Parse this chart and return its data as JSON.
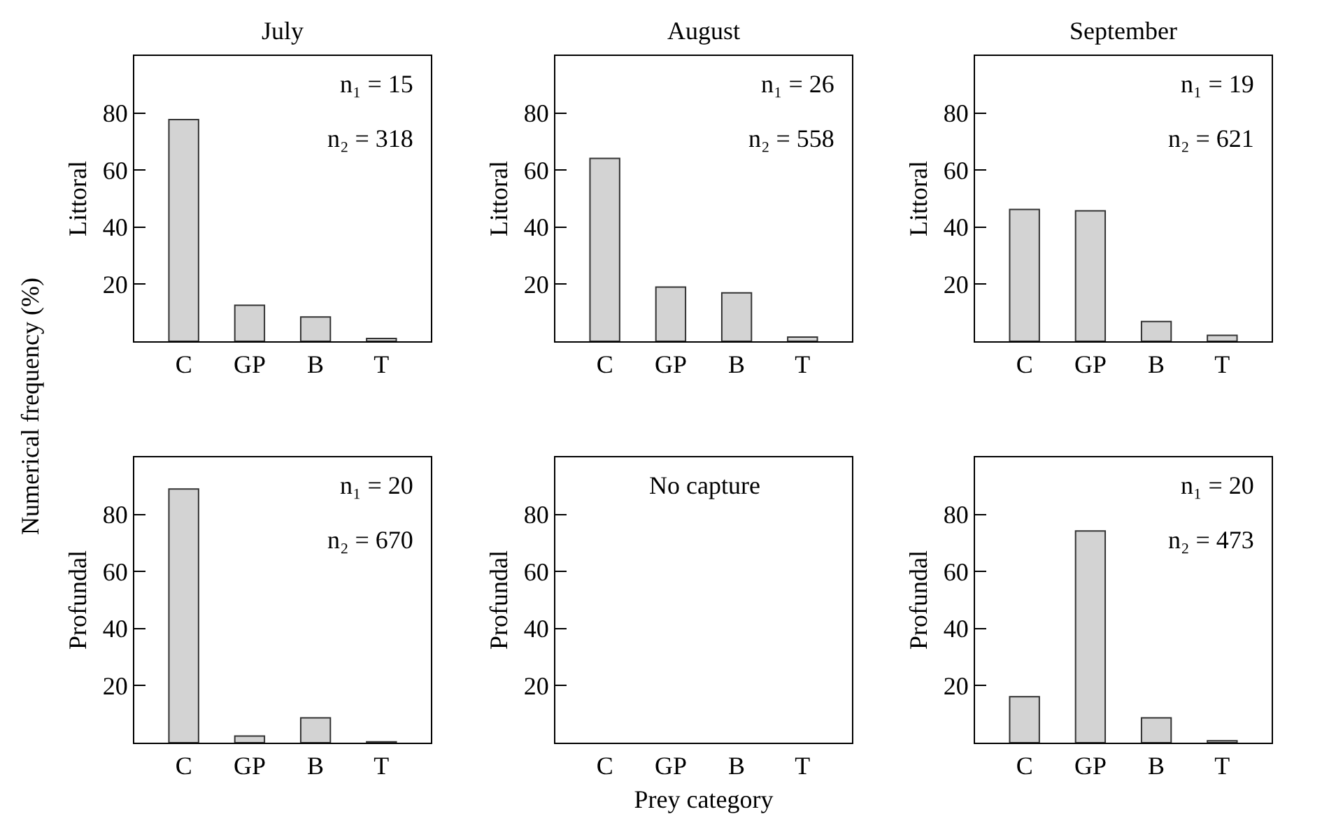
{
  "chart_data": [
    {
      "type": "bar",
      "title": "July",
      "ylabel": "Littoral",
      "categories": [
        "C",
        "GP",
        "B",
        "T"
      ],
      "values": [
        77.7,
        12.6,
        8.5,
        1.0
      ],
      "color": "#d3d3d3",
      "ylim": [
        0,
        100
      ],
      "yticks": [
        20,
        40,
        60,
        80
      ],
      "annotations": [
        "n₁ = 15",
        "n₂ = 318",
        "Numerical frequency (%)"
      ]
    },
    {
      "type": "bar",
      "title": "August",
      "ylabel": "Littoral",
      "categories": [
        "C",
        "GP",
        "B",
        "T"
      ],
      "values": [
        64.1,
        19.0,
        17.0,
        1.5
      ],
      "color": "#d3d3d3",
      "ylim": [
        0,
        100
      ],
      "yticks": [
        20,
        40,
        60,
        80
      ],
      "annotations": [
        "n₁ = 26",
        "n₂ = 558"
      ]
    },
    {
      "type": "bar",
      "title": "September",
      "ylabel": "Littoral",
      "categories": [
        "C",
        "GP",
        "B",
        "T"
      ],
      "values": [
        46.2,
        45.7,
        6.9,
        2.1
      ],
      "color": "#d3d3d3",
      "ylim": [
        0,
        100
      ],
      "yticks": [
        20,
        40,
        60,
        80
      ],
      "annotations": [
        "n₁ = 19",
        "n₂ = 621"
      ]
    },
    {
      "type": "bar",
      "ylabel": "Profundal",
      "categories": [
        "C",
        "GP",
        "B",
        "T"
      ],
      "values": [
        88.9,
        2.3,
        8.7,
        0.3
      ],
      "color": "#d3d3d3",
      "ylim": [
        0,
        100
      ],
      "yticks": [
        20,
        40,
        60,
        80
      ],
      "annotations": [
        "n₁ = 20",
        "n₂ = 670"
      ]
    },
    {
      "type": "bar",
      "ylabel": "Profundal",
      "xlabel": "Prey category",
      "categories": [
        "C",
        "GP",
        "B",
        "T"
      ],
      "values": [
        null,
        null,
        null,
        null
      ],
      "color": "#d3d3d3",
      "ylim": [
        0,
        100
      ],
      "yticks": [
        20,
        40,
        60,
        80
      ],
      "annotations": [
        "No capture"
      ]
    },
    {
      "type": "bar",
      "ylabel": "Profundal",
      "categories": [
        "C",
        "GP",
        "B",
        "T"
      ],
      "values": [
        16.1,
        74.2,
        8.7,
        0.7
      ],
      "color": "#d3d3d3",
      "ylim": [
        0,
        100
      ],
      "yticks": [
        20,
        40,
        60,
        80
      ],
      "annotations": [
        "n₁ = 20",
        "n₂ = 473"
      ]
    }
  ]
}
